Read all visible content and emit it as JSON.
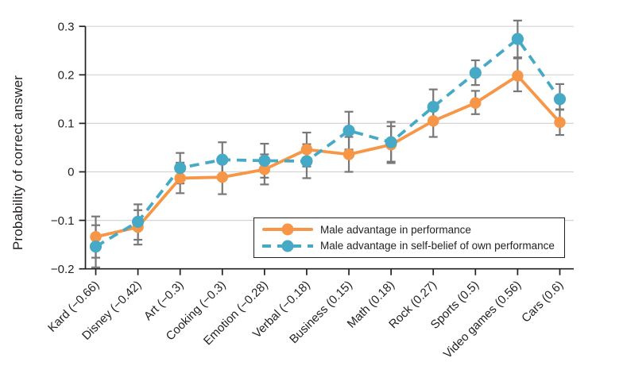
{
  "colors": {
    "performance": "#F79646",
    "self_belief": "#46A9C6",
    "error_bar": "#787878",
    "grid": "#d4d4d4",
    "axis": "#231f20",
    "text": "#231f20",
    "legend_border": "#231f20",
    "legend_bg": "#ffffff",
    "background": "#ffffff"
  },
  "chart_data": {
    "type": "line",
    "title": "",
    "xlabel": "",
    "ylabel": "Probability of correct answer",
    "ylim": [
      -0.2,
      0.3
    ],
    "yticks": [
      0.3,
      0.2,
      0.1,
      0,
      -0.1,
      -0.2
    ],
    "ytick_labels": [
      "0.3",
      "0.2",
      "0.1",
      "0",
      "−0.1",
      "−0.2"
    ],
    "grid": "horizontal gridlines on",
    "legend_position": "inside lower right, boxed",
    "error_bars": true,
    "categories": [
      "Kard (−0.66)",
      "Disney (−0.42)",
      "Art (−0.3)",
      "Cooking (−0.3)",
      "Emotion (−0.28)",
      "Verbal (−0.18)",
      "Business (0.15)",
      "Math (0.18)",
      "Rock (0.27)",
      "Sports (0.5)",
      "Video games (0.56)",
      "Cars (0.6)"
    ],
    "series": [
      {
        "name": "Male advantage in performance",
        "style": "solid",
        "marker": "circle",
        "color": "#F79646",
        "values": [
          -0.134,
          -0.114,
          -0.013,
          -0.011,
          0.005,
          0.046,
          0.036,
          0.056,
          0.105,
          0.142,
          0.198,
          0.102
        ],
        "ci_low": [
          -0.177,
          -0.15,
          -0.044,
          -0.046,
          -0.026,
          0.011,
          0.0,
          0.018,
          0.072,
          0.119,
          0.166,
          0.076
        ],
        "ci_high": [
          -0.092,
          -0.079,
          0.019,
          0.024,
          0.036,
          0.081,
          0.072,
          0.094,
          0.139,
          0.167,
          0.234,
          0.129
        ]
      },
      {
        "name": "Male advantage in self-belief of own performance",
        "style": "dashed",
        "marker": "circle",
        "color": "#46A9C6",
        "values": [
          -0.154,
          -0.103,
          0.008,
          0.025,
          0.023,
          0.022,
          0.085,
          0.061,
          0.134,
          0.204,
          0.274,
          0.15
        ],
        "ci_low": [
          -0.197,
          -0.14,
          -0.024,
          -0.011,
          -0.012,
          -0.013,
          0.046,
          0.021,
          0.099,
          0.179,
          0.236,
          0.128
        ],
        "ci_high": [
          -0.11,
          -0.067,
          0.039,
          0.061,
          0.058,
          0.057,
          0.124,
          0.103,
          0.17,
          0.23,
          0.312,
          0.181
        ]
      }
    ]
  }
}
